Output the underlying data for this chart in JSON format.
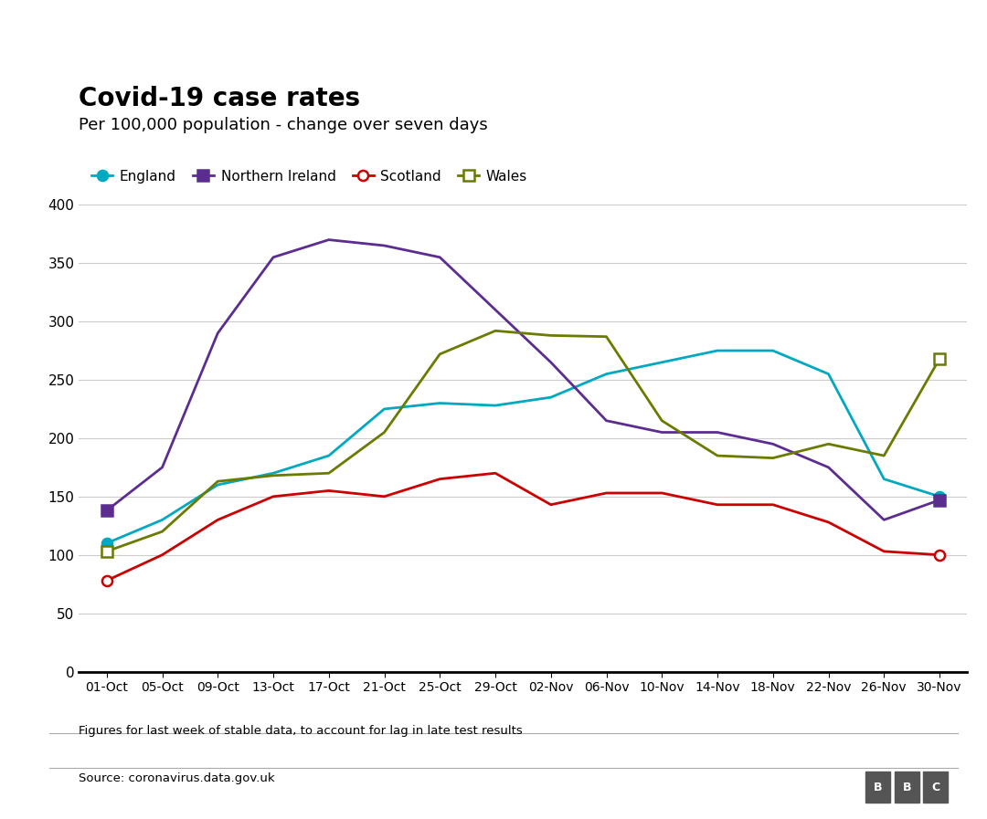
{
  "title": "Covid-19 case rates",
  "subtitle": "Per 100,000 population - change over seven days",
  "footnote": "Figures for last week of stable data, to account for lag in late test results",
  "source": "Source: coronavirus.data.gov.uk",
  "x_labels": [
    "01-Oct",
    "05-Oct",
    "09-Oct",
    "13-Oct",
    "17-Oct",
    "21-Oct",
    "25-Oct",
    "29-Oct",
    "02-Nov",
    "06-Nov",
    "10-Nov",
    "14-Nov",
    "18-Nov",
    "22-Nov",
    "26-Nov",
    "30-Nov"
  ],
  "series": {
    "England": {
      "color": "#00a9c0",
      "marker": "o",
      "marker_filled": true,
      "values": [
        110,
        130,
        160,
        170,
        185,
        225,
        230,
        228,
        235,
        255,
        265,
        275,
        275,
        255,
        165,
        150
      ]
    },
    "Northern Ireland": {
      "color": "#5c2d91",
      "marker": "s",
      "marker_filled": true,
      "values": [
        138,
        175,
        290,
        355,
        370,
        365,
        355,
        310,
        265,
        215,
        205,
        205,
        195,
        175,
        130,
        147
      ]
    },
    "Scotland": {
      "color": "#cc0000",
      "marker": "o",
      "marker_filled": false,
      "values": [
        78,
        100,
        130,
        150,
        155,
        150,
        165,
        170,
        143,
        153,
        153,
        143,
        143,
        128,
        103,
        100
      ]
    },
    "Wales": {
      "color": "#6b7b00",
      "marker": "s",
      "marker_filled": false,
      "values": [
        103,
        120,
        163,
        168,
        170,
        205,
        272,
        292,
        288,
        287,
        215,
        185,
        183,
        195,
        185,
        268
      ]
    }
  },
  "ylim": [
    0,
    400
  ],
  "yticks": [
    0,
    50,
    100,
    150,
    200,
    250,
    300,
    350,
    400
  ],
  "background_color": "#ffffff",
  "title_fontsize": 20,
  "subtitle_fontsize": 13,
  "legend_items": [
    {
      "name": "England",
      "color": "#00a9c0",
      "marker": "o",
      "filled": true
    },
    {
      "name": "Northern Ireland",
      "color": "#5c2d91",
      "marker": "s",
      "filled": true
    },
    {
      "name": "Scotland",
      "color": "#cc0000",
      "marker": "o",
      "filled": false
    },
    {
      "name": "Wales",
      "color": "#6b7b00",
      "marker": "s",
      "filled": false
    }
  ]
}
